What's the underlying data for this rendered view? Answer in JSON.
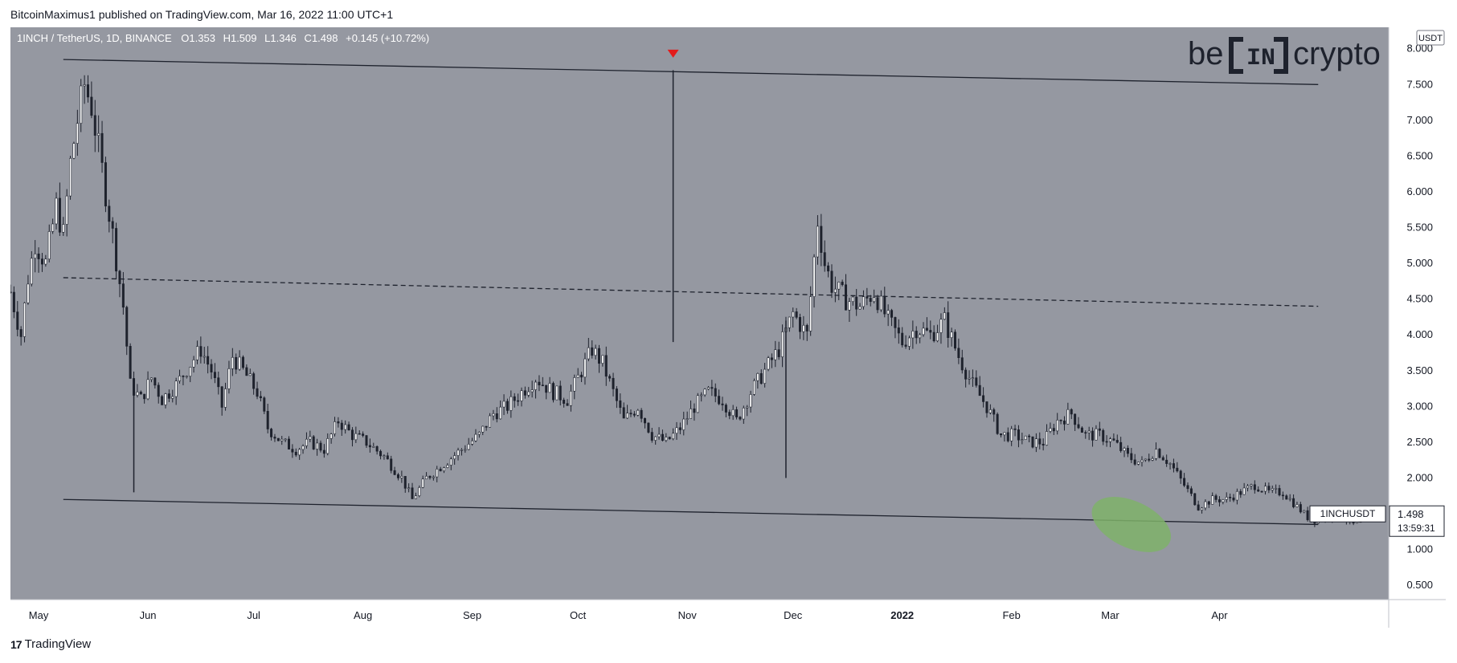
{
  "header": {
    "published_text": "BitcoinMaximus1 published on TradingView.com, Mar 16, 2022 11:00 UTC+1"
  },
  "footer": {
    "brand_logo": "17",
    "brand_text": "TradingView"
  },
  "watermark": {
    "text_left": "be",
    "text_mid": "IN",
    "text_right": "crypto"
  },
  "colors": {
    "background": "#9598a1",
    "candle": "#1e222d",
    "trendline": "#1e222d",
    "arrow": "#e31b1b",
    "highlight_ellipse": "#7fb26a",
    "axis_bg": "#ffffff"
  },
  "chart_data": {
    "type": "candlestick",
    "symbol_line": {
      "symbol": "1INCH / TetherUS, 1D, BINANCE",
      "o_label": "O",
      "o_value": "1.353",
      "h_label": "H",
      "h_value": "1.509",
      "l_label": "L",
      "l_value": "1.346",
      "c_label": "C",
      "c_value": "1.498",
      "change": "+0.145 (+10.72%)"
    },
    "currency_badge": "USDT",
    "price_tag": {
      "label": "1INCHUSDT",
      "price": "1.498",
      "countdown": "13:59:31"
    },
    "y_axis": {
      "ticks": [
        "8.000",
        "7.500",
        "7.000",
        "6.500",
        "6.000",
        "5.500",
        "5.000",
        "4.500",
        "4.000",
        "3.500",
        "3.000",
        "2.500",
        "2.000",
        "1.500",
        "1.000",
        "0.500"
      ],
      "tick_values": [
        8.0,
        7.5,
        7.0,
        6.5,
        6.0,
        5.5,
        5.0,
        4.5,
        4.0,
        3.5,
        3.0,
        2.5,
        2.0,
        1.5,
        1.0,
        0.5
      ],
      "ylim": [
        0.3,
        8.3
      ]
    },
    "x_axis": {
      "ticks": [
        "May",
        "Jun",
        "Jul",
        "Aug",
        "Sep",
        "Oct",
        "Nov",
        "Dec",
        "2022",
        "Feb",
        "Mar",
        "Apr"
      ],
      "tick_dates": [
        "2021-05-01",
        "2021-06-01",
        "2021-07-01",
        "2021-08-01",
        "2021-09-01",
        "2021-10-01",
        "2021-11-01",
        "2021-12-01",
        "2022-01-01",
        "2022-02-01",
        "2022-03-01",
        "2022-04-01"
      ],
      "bold_ticks": [
        "2022"
      ],
      "xlim": [
        "2021-04-23",
        "2022-05-19"
      ]
    },
    "price_path": [
      [
        "2021-04-23",
        4.6
      ],
      [
        "2021-04-26",
        4.0
      ],
      [
        "2021-04-28",
        4.8
      ],
      [
        "2021-04-30",
        5.3
      ],
      [
        "2021-05-03",
        5.0
      ],
      [
        "2021-05-06",
        5.8
      ],
      [
        "2021-05-08",
        5.4
      ],
      [
        "2021-05-10",
        6.4
      ],
      [
        "2021-05-12",
        7.0
      ],
      [
        "2021-05-14",
        7.5
      ],
      [
        "2021-05-16",
        7.2
      ],
      [
        "2021-05-18",
        6.6
      ],
      [
        "2021-05-20",
        6.0
      ],
      [
        "2021-05-22",
        5.4
      ],
      [
        "2021-05-25",
        4.4
      ],
      [
        "2021-05-27",
        3.3
      ],
      [
        "2021-05-30",
        3.1
      ],
      [
        "2021-06-02",
        3.4
      ],
      [
        "2021-06-05",
        3.1
      ],
      [
        "2021-06-09",
        3.3
      ],
      [
        "2021-06-13",
        3.6
      ],
      [
        "2021-06-16",
        3.8
      ],
      [
        "2021-06-19",
        3.5
      ],
      [
        "2021-06-22",
        3.0
      ],
      [
        "2021-06-25",
        3.7
      ],
      [
        "2021-06-28",
        3.5
      ],
      [
        "2021-07-02",
        3.2
      ],
      [
        "2021-07-05",
        2.7
      ],
      [
        "2021-07-09",
        2.5
      ],
      [
        "2021-07-13",
        2.4
      ],
      [
        "2021-07-17",
        2.5
      ],
      [
        "2021-07-21",
        2.4
      ],
      [
        "2021-07-25",
        2.8
      ],
      [
        "2021-07-29",
        2.6
      ],
      [
        "2021-08-02",
        2.5
      ],
      [
        "2021-08-07",
        2.3
      ],
      [
        "2021-08-12",
        2.0
      ],
      [
        "2021-08-15",
        1.7
      ],
      [
        "2021-08-19",
        2.0
      ],
      [
        "2021-08-24",
        2.2
      ],
      [
        "2021-08-29",
        2.4
      ],
      [
        "2021-09-03",
        2.6
      ],
      [
        "2021-09-07",
        2.9
      ],
      [
        "2021-09-11",
        3.0
      ],
      [
        "2021-09-15",
        3.2
      ],
      [
        "2021-09-19",
        3.4
      ],
      [
        "2021-09-24",
        3.2
      ],
      [
        "2021-09-28",
        3.1
      ],
      [
        "2021-10-02",
        3.5
      ],
      [
        "2021-10-05",
        3.8
      ],
      [
        "2021-10-08",
        3.6
      ],
      [
        "2021-10-11",
        3.2
      ],
      [
        "2021-10-14",
        2.8
      ],
      [
        "2021-10-18",
        3.0
      ],
      [
        "2021-10-22",
        2.6
      ],
      [
        "2021-10-26",
        2.5
      ],
      [
        "2021-10-30",
        2.7
      ],
      [
        "2021-11-03",
        3.0
      ],
      [
        "2021-11-07",
        3.2
      ],
      [
        "2021-11-11",
        3.1
      ],
      [
        "2021-11-15",
        2.8
      ],
      [
        "2021-11-19",
        3.2
      ],
      [
        "2021-11-23",
        3.5
      ],
      [
        "2021-11-27",
        3.8
      ],
      [
        "2021-12-01",
        4.3
      ],
      [
        "2021-12-05",
        4.0
      ],
      [
        "2021-12-08",
        5.6
      ],
      [
        "2021-12-10",
        5.0
      ],
      [
        "2021-12-12",
        4.7
      ],
      [
        "2021-12-16",
        4.5
      ],
      [
        "2021-12-20",
        4.4
      ],
      [
        "2021-12-24",
        4.6
      ],
      [
        "2021-12-28",
        4.2
      ],
      [
        "2022-01-01",
        3.9
      ],
      [
        "2022-01-05",
        4.1
      ],
      [
        "2022-01-09",
        4.0
      ],
      [
        "2022-01-13",
        4.2
      ],
      [
        "2022-01-17",
        3.7
      ],
      [
        "2022-01-21",
        3.3
      ],
      [
        "2022-01-25",
        3.0
      ],
      [
        "2022-01-29",
        2.6
      ],
      [
        "2022-02-02",
        2.6
      ],
      [
        "2022-02-06",
        2.5
      ],
      [
        "2022-02-10",
        2.5
      ],
      [
        "2022-02-14",
        2.8
      ],
      [
        "2022-02-18",
        2.9
      ],
      [
        "2022-02-22",
        2.6
      ],
      [
        "2022-02-26",
        2.6
      ],
      [
        "2022-03-02",
        2.5
      ],
      [
        "2022-03-06",
        2.3
      ],
      [
        "2022-03-10",
        2.2
      ],
      [
        "2022-03-14",
        2.4
      ],
      [
        "2022-03-18",
        2.2
      ],
      [
        "2022-03-22",
        1.9
      ],
      [
        "2022-03-26",
        1.6
      ],
      [
        "2022-03-30",
        1.7
      ],
      [
        "2022-04-03",
        1.7
      ],
      [
        "2022-04-07",
        1.8
      ],
      [
        "2022-04-11",
        1.9
      ],
      [
        "2022-04-15",
        1.8
      ],
      [
        "2022-04-19",
        1.8
      ],
      [
        "2022-04-23",
        1.6
      ],
      [
        "2022-04-27",
        1.4
      ],
      [
        "2022-05-01",
        1.45
      ],
      [
        "2022-05-05",
        1.5
      ],
      [
        "2022-05-09",
        1.35
      ],
      [
        "2022-05-13",
        1.38
      ],
      [
        "2022-05-17",
        1.5
      ]
    ],
    "spikes": [
      {
        "date": "2021-10-28",
        "high": 7.7,
        "low": 3.9
      },
      {
        "date": "2021-11-29",
        "high": 4.2,
        "low": 2.0
      },
      {
        "date": "2021-05-28",
        "high": 3.3,
        "low": 1.8
      }
    ],
    "lines": [
      {
        "name": "upper-channel-line",
        "style": "solid",
        "from": [
          "2021-05-08",
          7.85
        ],
        "to": [
          "2022-04-29",
          7.5
        ]
      },
      {
        "name": "mid-channel-line",
        "style": "dashed",
        "from": [
          "2021-05-08",
          4.8
        ],
        "to": [
          "2022-04-29",
          4.4
        ]
      },
      {
        "name": "lower-channel-line",
        "style": "solid",
        "from": [
          "2021-05-08",
          1.7
        ],
        "to": [
          "2022-04-29",
          1.35
        ]
      }
    ],
    "marker": {
      "type": "down-arrow",
      "date": "2021-10-28",
      "value": 7.92
    },
    "highlight": {
      "type": "ellipse",
      "center_date": "2022-03-07",
      "center_value": 1.35,
      "width_days": 24,
      "height_value": 0.65
    },
    "grid": false,
    "legend": "none"
  }
}
